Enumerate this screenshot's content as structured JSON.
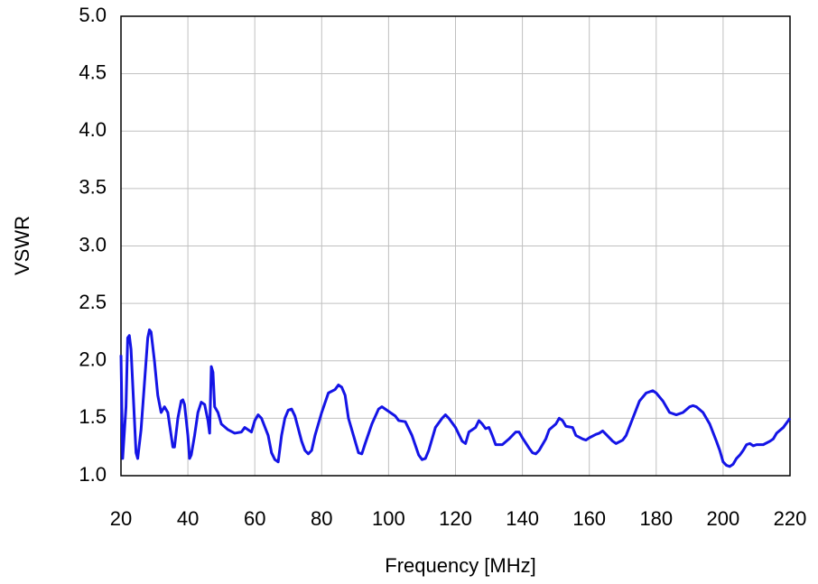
{
  "chart_data": {
    "type": "line",
    "x_label": "Frequency [MHz]",
    "y_label": "VSWR",
    "xlim": [
      20,
      220
    ],
    "xticks": [
      20,
      40,
      60,
      80,
      100,
      120,
      140,
      160,
      180,
      200,
      220
    ],
    "ylim": [
      1,
      5
    ],
    "yticks": [
      {
        "value": 1,
        "label": "1.0"
      },
      1.5,
      {
        "value": 2,
        "label": "2.0"
      },
      2.5,
      {
        "value": 3,
        "label": "3.0"
      },
      3.5,
      {
        "value": 4,
        "label": "4.0"
      },
      4.5,
      {
        "value": 5,
        "label": "5.0"
      }
    ],
    "grid": true,
    "x": [
      20,
      20.5,
      21.5,
      22,
      22.5,
      23,
      24,
      24.5,
      25,
      26,
      27,
      28,
      28.5,
      29,
      30,
      31,
      32,
      33,
      34,
      35,
      35.5,
      36,
      37,
      38,
      38.5,
      39,
      40,
      40.5,
      41,
      42,
      43,
      44,
      45,
      46,
      46.5,
      47,
      47.5,
      48,
      49,
      50,
      52,
      54,
      56,
      57,
      58,
      59,
      60,
      61,
      62,
      64,
      65,
      66,
      67,
      68,
      69,
      70,
      71,
      72,
      74,
      75,
      76,
      77,
      78,
      80,
      82,
      84,
      85,
      86,
      87,
      88,
      90,
      91,
      92,
      93,
      95,
      97,
      98,
      100,
      102,
      103,
      105,
      107,
      109,
      110,
      111,
      112,
      114,
      116,
      117,
      118,
      120,
      122,
      123,
      124,
      125,
      126,
      127,
      128,
      129,
      130,
      131,
      132,
      134,
      136,
      138,
      139,
      140,
      142,
      143,
      144,
      145,
      147,
      148,
      150,
      151,
      152,
      153,
      155,
      156,
      158,
      159,
      160,
      162,
      163,
      164,
      165,
      167,
      168,
      170,
      171,
      173,
      175,
      177,
      179,
      180,
      182,
      184,
      186,
      188,
      190,
      191,
      192,
      194,
      196,
      198,
      199,
      200,
      201,
      202,
      203,
      204,
      205,
      206,
      207,
      208,
      209,
      210,
      212,
      214,
      215,
      216,
      218,
      220
    ],
    "series": [
      {
        "name": "VSWR",
        "color": "#1414e6",
        "values": [
          2.05,
          1.15,
          1.6,
          2.2,
          2.22,
          2.1,
          1.5,
          1.2,
          1.15,
          1.4,
          1.8,
          2.2,
          2.27,
          2.25,
          2.0,
          1.7,
          1.55,
          1.6,
          1.55,
          1.35,
          1.25,
          1.25,
          1.5,
          1.65,
          1.66,
          1.62,
          1.35,
          1.15,
          1.18,
          1.35,
          1.55,
          1.64,
          1.62,
          1.48,
          1.37,
          1.95,
          1.9,
          1.6,
          1.55,
          1.45,
          1.4,
          1.37,
          1.38,
          1.42,
          1.4,
          1.38,
          1.48,
          1.53,
          1.5,
          1.35,
          1.2,
          1.14,
          1.12,
          1.35,
          1.5,
          1.57,
          1.58,
          1.52,
          1.3,
          1.22,
          1.19,
          1.22,
          1.35,
          1.55,
          1.72,
          1.75,
          1.79,
          1.77,
          1.7,
          1.5,
          1.3,
          1.2,
          1.19,
          1.28,
          1.45,
          1.58,
          1.6,
          1.56,
          1.52,
          1.48,
          1.47,
          1.35,
          1.18,
          1.14,
          1.15,
          1.22,
          1.42,
          1.5,
          1.53,
          1.5,
          1.42,
          1.3,
          1.28,
          1.38,
          1.4,
          1.42,
          1.48,
          1.45,
          1.41,
          1.42,
          1.35,
          1.27,
          1.27,
          1.32,
          1.38,
          1.38,
          1.33,
          1.24,
          1.2,
          1.19,
          1.22,
          1.32,
          1.4,
          1.45,
          1.5,
          1.48,
          1.43,
          1.42,
          1.35,
          1.32,
          1.31,
          1.33,
          1.36,
          1.37,
          1.39,
          1.36,
          1.3,
          1.28,
          1.31,
          1.35,
          1.5,
          1.65,
          1.72,
          1.74,
          1.72,
          1.65,
          1.55,
          1.53,
          1.55,
          1.6,
          1.61,
          1.6,
          1.55,
          1.45,
          1.3,
          1.22,
          1.12,
          1.09,
          1.08,
          1.1,
          1.15,
          1.18,
          1.22,
          1.27,
          1.28,
          1.26,
          1.27,
          1.27,
          1.3,
          1.32,
          1.37,
          1.42,
          1.5
        ]
      }
    ]
  }
}
